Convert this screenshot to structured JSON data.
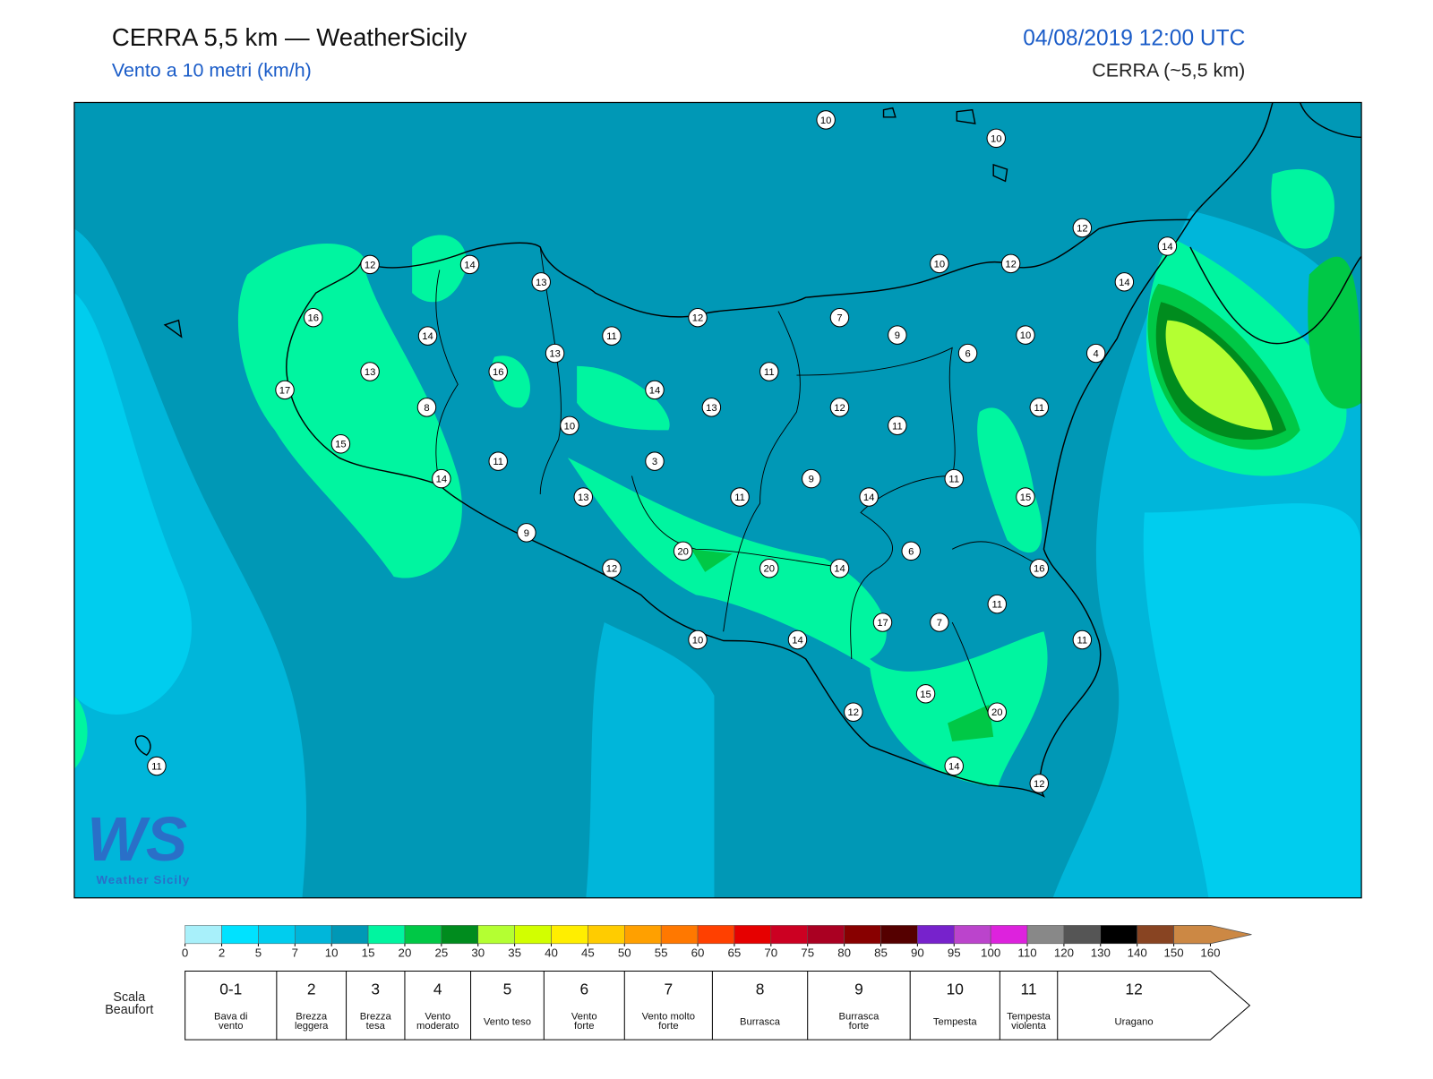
{
  "header": {
    "title": "CERRA 5,5 km — WeatherSicily",
    "subtitle": "Vento a 10 metri (km/h)",
    "datetime": "04/08/2019 12:00 UTC",
    "model": "CERRA (~5,5 km)"
  },
  "logo": {
    "mark": "WS",
    "text": "Weather Sicily"
  },
  "stations": [
    10,
    10,
    12,
    14,
    10,
    12,
    14,
    12,
    14,
    13,
    16,
    12,
    7,
    9,
    10,
    14,
    11,
    6,
    4,
    13,
    13,
    16,
    11,
    17,
    14,
    13,
    12,
    11,
    8,
    10,
    11,
    15,
    11,
    3,
    14,
    9,
    11,
    13,
    11,
    14,
    15,
    9,
    20,
    6,
    20,
    14,
    16,
    12,
    11,
    17,
    7,
    10,
    14,
    11,
    15,
    12,
    20,
    11,
    14,
    12
  ],
  "colorbar": {
    "ticks": [
      0,
      2,
      5,
      7,
      10,
      15,
      20,
      25,
      30,
      35,
      40,
      45,
      50,
      55,
      60,
      65,
      70,
      75,
      80,
      85,
      90,
      95,
      100,
      110,
      120,
      130,
      140,
      150,
      160
    ],
    "colors": [
      "#a8f0fa",
      "#00e2ff",
      "#00cdee",
      "#00b6da",
      "#0098b6",
      "#00f5a0",
      "#00c846",
      "#008c1e",
      "#b4ff32",
      "#d2ff00",
      "#ffee00",
      "#ffcc00",
      "#ffa000",
      "#ff7800",
      "#ff4000",
      "#e60000",
      "#cc0022",
      "#aa0022",
      "#880000",
      "#550000",
      "#7722cc",
      "#bb44cc",
      "#dd22dd",
      "#888888",
      "#555555",
      "#000000",
      "#884422",
      "#cc8844"
    ]
  },
  "beaufort": {
    "label": [
      "Scala",
      "Beaufort"
    ],
    "classes": [
      {
        "force": "0-1",
        "name": [
          "Bava di",
          "vento"
        ]
      },
      {
        "force": "2",
        "name": [
          "Brezza",
          "leggera"
        ]
      },
      {
        "force": "3",
        "name": [
          "Brezza",
          "tesa"
        ]
      },
      {
        "force": "4",
        "name": [
          "Vento",
          "moderato"
        ]
      },
      {
        "force": "5",
        "name": [
          "Vento teso"
        ]
      },
      {
        "force": "6",
        "name": [
          "Vento",
          "forte"
        ]
      },
      {
        "force": "7",
        "name": [
          "Vento molto",
          "forte"
        ]
      },
      {
        "force": "8",
        "name": [
          "Burrasca"
        ]
      },
      {
        "force": "9",
        "name": [
          "Burrasca",
          "forte"
        ]
      },
      {
        "force": "10",
        "name": [
          "Tempesta"
        ]
      },
      {
        "force": "11",
        "name": [
          "Tempesta",
          "violenta"
        ]
      },
      {
        "force": "12",
        "name": [
          "Uragano"
        ]
      }
    ]
  }
}
